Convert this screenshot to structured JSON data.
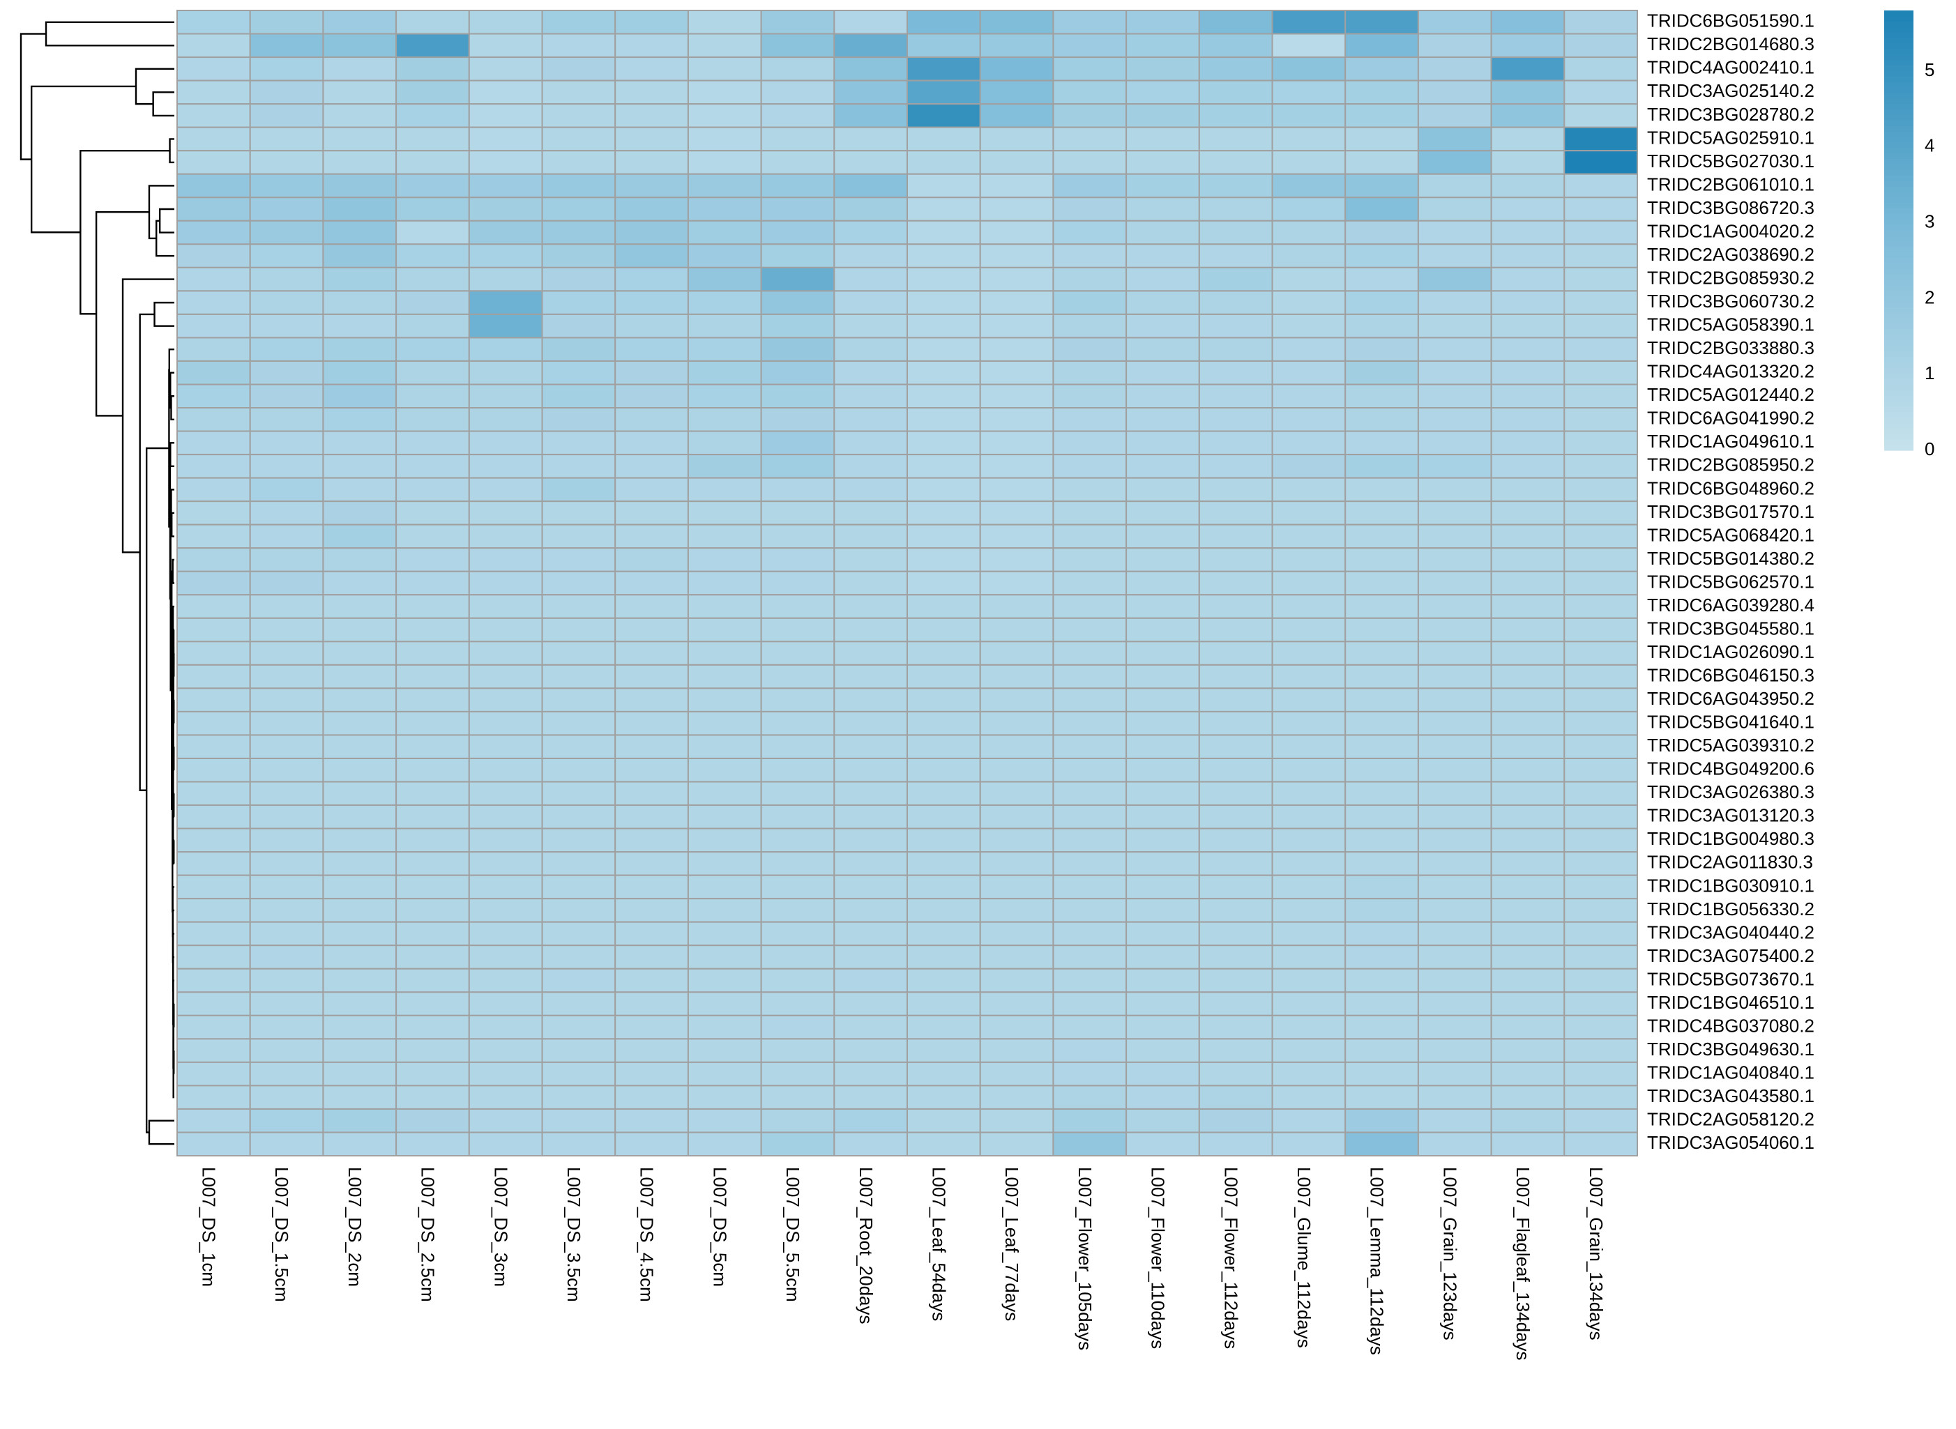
{
  "chart_data": {
    "type": "heatmap",
    "title": "",
    "color_scale": {
      "low": "#c6e1ec",
      "mid": "#7bbad8",
      "high": "#1d82b5",
      "min": 0,
      "max": 5.8
    },
    "legend": {
      "ticks": [
        0,
        1,
        2,
        3,
        4,
        5
      ],
      "tick_labels": [
        "0",
        "1",
        "2",
        "3",
        "4",
        "5"
      ]
    },
    "columns": [
      "L007_DS_1cm",
      "L007_DS_1.5cm",
      "L007_DS_2cm",
      "L007_DS_2.5cm",
      "L007_DS_3cm",
      "L007_DS_3.5cm",
      "L007_DS_4.5cm",
      "L007_DS_5cm",
      "L007_DS_5.5cm",
      "L007_Root_20days",
      "L007_Leaf_54days",
      "L007_Leaf_77days",
      "L007_Flower_105days",
      "L007_Flower_110days",
      "L007_Flower_112days",
      "L007_Glume_112days",
      "L007_Lemma_112days",
      "L007_Grain_123days",
      "L007_Flagleaf_134days",
      "L007_Grain_134days"
    ],
    "rows": [
      "TRIDC6BG051590.1",
      "TRIDC2BG014680.3",
      "TRIDC4AG002410.1",
      "TRIDC3AG025140.2",
      "TRIDC3BG028780.2",
      "TRIDC5AG025910.1",
      "TRIDC5BG027030.1",
      "TRIDC2BG061010.1",
      "TRIDC3BG086720.3",
      "TRIDC1AG004020.2",
      "TRIDC2AG038690.2",
      "TRIDC2BG085930.2",
      "TRIDC3BG060730.2",
      "TRIDC5AG058390.1",
      "TRIDC2BG033880.3",
      "TRIDC4AG013320.2",
      "TRIDC5AG012440.2",
      "TRIDC6AG041990.2",
      "TRIDC1AG049610.1",
      "TRIDC2BG085950.2",
      "TRIDC6BG048960.2",
      "TRIDC3BG017570.1",
      "TRIDC5AG068420.1",
      "TRIDC5BG014380.2",
      "TRIDC5BG062570.1",
      "TRIDC6AG039280.4",
      "TRIDC3BG045580.1",
      "TRIDC1AG026090.1",
      "TRIDC6BG046150.3",
      "TRIDC6AG043950.2",
      "TRIDC5BG041640.1",
      "TRIDC5AG039310.2",
      "TRIDC4BG049200.6",
      "TRIDC3AG026380.3",
      "TRIDC3AG013120.3",
      "TRIDC1BG004980.3",
      "TRIDC2AG011830.3",
      "TRIDC1BG030910.1",
      "TRIDC1BG056330.2",
      "TRIDC3AG040440.2",
      "TRIDC3AG075400.2",
      "TRIDC5BG073670.1",
      "TRIDC1BG046510.1",
      "TRIDC4BG037080.2",
      "TRIDC3BG049630.1",
      "TRIDC1AG040840.1",
      "TRIDC3AG043580.1",
      "TRIDC2AG058120.2",
      "TRIDC3AG054060.1"
    ],
    "values": [
      [
        1.2,
        1.4,
        1.6,
        1.0,
        1.0,
        1.5,
        1.5,
        0.8,
        1.7,
        0.9,
        2.9,
        2.7,
        1.6,
        1.6,
        2.8,
        4.4,
        4.3,
        1.6,
        2.5,
        1.1
      ],
      [
        0.8,
        2.4,
        2.3,
        4.4,
        0.8,
        0.9,
        0.9,
        0.8,
        2.3,
        3.5,
        1.8,
        1.8,
        1.6,
        1.5,
        1.8,
        0.5,
        2.9,
        1.1,
        1.6,
        1.1
      ],
      [
        0.9,
        1.2,
        0.9,
        1.4,
        0.8,
        1.1,
        0.9,
        0.8,
        1.0,
        2.3,
        4.5,
        2.9,
        1.5,
        1.4,
        1.8,
        2.3,
        1.6,
        1.1,
        4.4,
        1.0
      ],
      [
        0.8,
        1.1,
        0.8,
        1.4,
        0.7,
        0.8,
        0.8,
        0.7,
        0.9,
        2.2,
        4.0,
        2.6,
        1.3,
        1.2,
        1.3,
        1.2,
        1.3,
        1.1,
        2.1,
        0.9
      ],
      [
        0.8,
        1.1,
        0.8,
        1.2,
        0.7,
        0.8,
        0.8,
        0.7,
        0.9,
        2.4,
        5.1,
        2.6,
        1.4,
        1.4,
        1.3,
        1.3,
        1.3,
        1.1,
        2.1,
        0.8
      ],
      [
        0.8,
        0.8,
        0.8,
        0.8,
        0.7,
        0.8,
        0.8,
        0.7,
        0.8,
        0.8,
        0.8,
        0.8,
        0.8,
        0.8,
        0.8,
        0.8,
        0.8,
        2.3,
        0.8,
        5.6
      ],
      [
        0.8,
        0.8,
        0.8,
        0.8,
        0.7,
        0.8,
        0.8,
        0.7,
        0.8,
        0.8,
        0.8,
        0.8,
        0.8,
        0.8,
        0.8,
        0.8,
        0.8,
        2.6,
        0.8,
        5.8
      ],
      [
        2.0,
        1.8,
        1.9,
        1.6,
        1.6,
        1.8,
        1.7,
        1.7,
        1.8,
        2.4,
        0.7,
        0.7,
        1.6,
        1.3,
        1.3,
        2.0,
        2.1,
        1.0,
        1.0,
        0.9
      ],
      [
        1.7,
        1.6,
        2.1,
        1.5,
        1.4,
        1.5,
        1.8,
        1.6,
        1.6,
        1.4,
        0.7,
        0.7,
        1.1,
        1.0,
        1.0,
        1.2,
        2.6,
        1.0,
        0.9,
        0.9
      ],
      [
        1.6,
        1.7,
        2.0,
        0.7,
        1.7,
        1.7,
        1.9,
        1.5,
        1.6,
        1.2,
        0.7,
        0.7,
        1.2,
        1.0,
        1.0,
        1.0,
        1.1,
        0.9,
        0.9,
        0.9
      ],
      [
        1.1,
        1.2,
        1.9,
        1.2,
        1.2,
        1.4,
        2.0,
        1.6,
        1.3,
        0.9,
        0.7,
        0.7,
        0.9,
        0.9,
        0.9,
        1.0,
        1.2,
        0.9,
        0.9,
        0.8
      ],
      [
        0.9,
        1.0,
        1.3,
        1.0,
        1.0,
        1.1,
        1.2,
        2.0,
        3.5,
        0.9,
        0.7,
        0.7,
        1.0,
        0.9,
        1.3,
        0.8,
        0.9,
        2.0,
        0.9,
        0.8
      ],
      [
        0.9,
        1.0,
        1.0,
        1.1,
        3.3,
        1.2,
        1.2,
        1.2,
        2.0,
        0.9,
        0.7,
        0.7,
        1.3,
        1.0,
        1.0,
        0.8,
        1.2,
        0.9,
        0.9,
        0.8
      ],
      [
        0.9,
        0.9,
        0.9,
        1.0,
        3.3,
        1.1,
        1.0,
        1.0,
        1.3,
        0.8,
        0.7,
        0.7,
        1.0,
        0.9,
        0.9,
        0.8,
        1.0,
        0.8,
        0.8,
        0.8
      ],
      [
        1.0,
        1.2,
        1.3,
        1.2,
        1.2,
        1.4,
        1.2,
        1.2,
        1.9,
        1.0,
        0.7,
        0.7,
        1.1,
        1.0,
        1.0,
        0.9,
        1.1,
        0.9,
        0.9,
        0.9
      ],
      [
        1.4,
        1.1,
        1.5,
        1.0,
        1.0,
        1.2,
        1.1,
        1.3,
        1.6,
        0.9,
        0.7,
        0.7,
        1.0,
        0.9,
        0.9,
        0.9,
        1.4,
        0.9,
        0.9,
        0.8
      ],
      [
        1.2,
        1.1,
        1.6,
        1.0,
        1.0,
        1.3,
        1.1,
        1.2,
        1.3,
        0.9,
        0.7,
        0.7,
        1.0,
        0.9,
        0.9,
        0.9,
        1.0,
        0.9,
        0.9,
        0.8
      ],
      [
        1.0,
        1.0,
        1.2,
        1.0,
        1.0,
        1.1,
        1.0,
        1.0,
        1.1,
        0.9,
        0.7,
        0.7,
        0.9,
        0.9,
        0.9,
        0.9,
        1.0,
        0.9,
        0.9,
        0.8
      ],
      [
        0.9,
        0.9,
        0.9,
        0.9,
        0.9,
        0.9,
        0.9,
        1.0,
        1.6,
        0.9,
        0.7,
        0.7,
        0.9,
        0.9,
        0.9,
        0.9,
        0.9,
        0.9,
        0.9,
        0.8
      ],
      [
        0.9,
        0.9,
        0.9,
        0.9,
        0.9,
        0.9,
        0.9,
        1.4,
        1.5,
        0.9,
        0.7,
        0.7,
        0.9,
        0.9,
        0.9,
        1.1,
        1.3,
        1.2,
        0.9,
        0.8
      ],
      [
        0.9,
        1.2,
        0.9,
        0.9,
        0.9,
        1.3,
        0.9,
        0.9,
        0.9,
        0.9,
        0.7,
        0.7,
        0.8,
        0.8,
        0.8,
        0.8,
        0.8,
        0.8,
        0.8,
        0.8
      ],
      [
        0.8,
        0.9,
        1.1,
        0.8,
        0.8,
        0.8,
        0.8,
        0.8,
        0.8,
        0.8,
        0.7,
        0.7,
        0.8,
        0.8,
        0.8,
        0.8,
        0.8,
        0.8,
        0.8,
        0.8
      ],
      [
        0.8,
        0.9,
        1.3,
        0.8,
        0.8,
        0.8,
        0.8,
        0.8,
        0.8,
        0.8,
        0.7,
        0.7,
        0.8,
        0.8,
        0.8,
        0.8,
        0.8,
        0.8,
        0.8,
        0.8
      ],
      [
        1.0,
        1.0,
        1.0,
        0.9,
        0.9,
        0.9,
        1.0,
        0.9,
        0.9,
        0.8,
        0.7,
        0.7,
        0.8,
        0.8,
        0.8,
        0.8,
        0.8,
        0.8,
        0.8,
        0.8
      ],
      [
        1.1,
        1.1,
        0.9,
        0.9,
        0.9,
        0.9,
        0.9,
        0.9,
        0.9,
        0.8,
        0.7,
        0.7,
        0.8,
        0.8,
        0.8,
        0.8,
        0.8,
        0.8,
        0.8,
        0.8
      ],
      [
        0.8,
        0.8,
        0.8,
        0.8,
        0.8,
        0.8,
        0.8,
        0.8,
        0.8,
        0.8,
        0.8,
        0.8,
        0.8,
        0.8,
        0.8,
        0.8,
        0.8,
        0.8,
        0.8,
        0.8
      ],
      [
        0.8,
        0.8,
        0.8,
        0.8,
        0.8,
        0.8,
        0.8,
        0.8,
        0.8,
        0.8,
        0.8,
        0.8,
        0.8,
        0.8,
        0.8,
        0.8,
        0.8,
        0.8,
        0.8,
        0.8
      ],
      [
        0.8,
        0.8,
        0.8,
        0.8,
        0.8,
        0.8,
        0.8,
        0.8,
        0.8,
        0.8,
        0.8,
        0.8,
        0.8,
        0.8,
        0.8,
        0.8,
        0.8,
        0.8,
        0.8,
        0.8
      ],
      [
        0.8,
        0.8,
        0.8,
        0.8,
        0.8,
        0.8,
        0.8,
        0.8,
        0.8,
        0.8,
        0.8,
        0.8,
        0.8,
        0.8,
        0.8,
        0.8,
        0.8,
        0.8,
        0.8,
        0.8
      ],
      [
        0.8,
        0.8,
        0.8,
        0.8,
        0.8,
        0.8,
        0.8,
        0.8,
        0.8,
        0.8,
        0.8,
        0.8,
        0.8,
        0.8,
        0.8,
        0.8,
        0.8,
        0.8,
        0.8,
        0.8
      ],
      [
        0.8,
        0.8,
        0.8,
        0.8,
        0.8,
        0.8,
        0.8,
        0.8,
        0.8,
        0.8,
        0.8,
        0.8,
        0.8,
        0.8,
        0.8,
        0.8,
        0.8,
        0.8,
        0.8,
        0.8
      ],
      [
        0.8,
        0.8,
        0.8,
        0.8,
        0.8,
        0.8,
        0.8,
        0.8,
        0.8,
        0.8,
        0.8,
        0.8,
        0.8,
        0.8,
        0.8,
        0.8,
        0.8,
        0.8,
        0.8,
        0.8
      ],
      [
        0.8,
        0.8,
        0.8,
        0.8,
        0.8,
        0.8,
        0.8,
        0.8,
        0.8,
        0.8,
        0.8,
        0.8,
        0.8,
        0.8,
        0.8,
        0.8,
        0.8,
        0.8,
        0.8,
        0.8
      ],
      [
        0.8,
        0.8,
        0.8,
        0.8,
        0.8,
        0.8,
        0.8,
        0.8,
        0.8,
        0.8,
        0.8,
        0.8,
        0.8,
        0.8,
        0.8,
        0.8,
        0.8,
        0.8,
        0.8,
        0.8
      ],
      [
        0.8,
        0.8,
        0.8,
        0.8,
        0.8,
        0.8,
        0.8,
        0.8,
        0.8,
        0.8,
        0.8,
        0.8,
        0.8,
        0.8,
        0.8,
        0.8,
        0.8,
        0.8,
        0.8,
        0.8
      ],
      [
        0.8,
        0.8,
        0.8,
        0.8,
        0.8,
        0.8,
        0.8,
        0.8,
        0.8,
        0.8,
        0.8,
        0.8,
        0.8,
        0.8,
        0.8,
        0.8,
        0.8,
        0.8,
        0.8,
        0.8
      ],
      [
        0.8,
        0.8,
        0.8,
        0.8,
        0.8,
        0.8,
        0.8,
        0.8,
        0.8,
        0.8,
        0.8,
        0.8,
        0.8,
        0.8,
        0.8,
        0.8,
        0.8,
        0.8,
        0.8,
        0.8
      ],
      [
        0.8,
        0.8,
        0.8,
        0.8,
        0.8,
        0.8,
        0.8,
        0.8,
        0.8,
        0.8,
        0.8,
        0.8,
        0.8,
        0.8,
        0.8,
        0.8,
        1.0,
        0.8,
        0.8,
        0.8
      ],
      [
        0.8,
        0.8,
        0.8,
        0.8,
        0.8,
        0.8,
        0.8,
        0.8,
        0.8,
        0.8,
        0.8,
        0.8,
        0.8,
        0.8,
        0.8,
        0.8,
        1.0,
        0.8,
        0.8,
        0.8
      ],
      [
        0.8,
        0.8,
        0.8,
        0.8,
        0.8,
        0.8,
        0.8,
        0.8,
        0.8,
        0.8,
        0.8,
        0.8,
        0.8,
        0.8,
        0.8,
        0.8,
        0.9,
        0.8,
        0.8,
        0.8
      ],
      [
        0.8,
        0.9,
        0.8,
        0.8,
        0.8,
        0.8,
        0.8,
        0.8,
        0.8,
        0.8,
        0.8,
        0.8,
        0.8,
        0.8,
        0.8,
        0.8,
        0.9,
        0.8,
        0.8,
        0.8
      ],
      [
        0.8,
        0.8,
        0.8,
        0.8,
        0.8,
        0.9,
        0.8,
        0.8,
        0.8,
        0.9,
        0.8,
        0.8,
        0.8,
        0.8,
        0.8,
        0.8,
        0.8,
        0.8,
        0.8,
        0.8
      ],
      [
        0.8,
        0.8,
        0.8,
        0.8,
        0.8,
        0.8,
        0.8,
        0.8,
        0.8,
        0.8,
        0.8,
        0.8,
        0.8,
        0.8,
        0.8,
        0.8,
        0.8,
        0.8,
        0.8,
        0.8
      ],
      [
        0.8,
        0.8,
        0.8,
        0.8,
        0.8,
        0.8,
        0.8,
        0.8,
        0.9,
        0.8,
        0.8,
        0.8,
        0.8,
        0.8,
        0.8,
        0.8,
        0.8,
        0.8,
        0.8,
        0.8
      ],
      [
        0.8,
        0.8,
        0.8,
        0.8,
        0.8,
        0.8,
        0.8,
        0.8,
        0.8,
        0.8,
        0.8,
        0.8,
        0.9,
        0.8,
        0.8,
        0.8,
        0.8,
        0.8,
        0.8,
        0.8
      ],
      [
        0.8,
        0.8,
        0.8,
        0.8,
        0.8,
        0.8,
        0.8,
        0.8,
        0.8,
        0.8,
        0.8,
        0.8,
        0.9,
        0.9,
        0.8,
        0.8,
        0.8,
        0.8,
        0.8,
        0.8
      ],
      [
        0.8,
        0.8,
        0.8,
        0.8,
        0.8,
        0.8,
        0.8,
        0.8,
        0.8,
        0.8,
        0.8,
        0.8,
        1.0,
        0.9,
        1.0,
        0.8,
        0.8,
        0.8,
        0.8,
        0.8
      ],
      [
        0.9,
        1.2,
        1.3,
        1.1,
        0.9,
        0.9,
        0.9,
        0.9,
        1.0,
        1.2,
        0.8,
        0.8,
        1.3,
        1.0,
        1.1,
        0.9,
        1.6,
        0.9,
        1.0,
        0.9
      ],
      [
        0.9,
        0.9,
        0.9,
        0.9,
        0.9,
        0.9,
        0.9,
        0.9,
        1.3,
        0.9,
        0.8,
        0.8,
        2.0,
        0.9,
        0.9,
        0.9,
        2.5,
        0.9,
        0.9,
        0.9
      ]
    ],
    "row_dendrogram": {
      "merges": [
        [
          -6,
          -7,
          0.17
        ],
        [
          -28,
          -29,
          0.02
        ],
        [
          -27,
          2,
          0.025
        ],
        [
          -30,
          -31,
          0.02
        ],
        [
          3,
          4,
          0.03
        ],
        [
          -32,
          -33,
          0.02
        ],
        [
          5,
          6,
          0.035
        ],
        [
          -34,
          -35,
          0.02
        ],
        [
          7,
          8,
          0.04
        ],
        [
          -36,
          -37,
          0.02
        ],
        [
          9,
          10,
          0.045
        ],
        [
          -26,
          11,
          0.05
        ],
        [
          -43,
          -44,
          0.02
        ],
        [
          -45,
          -46,
          0.02
        ],
        [
          13,
          14,
          0.03
        ],
        [
          -47,
          15,
          0.035
        ],
        [
          -42,
          16,
          0.04
        ],
        [
          -41,
          17,
          0.045
        ],
        [
          -40,
          18,
          0.05
        ],
        [
          -39,
          19,
          0.055
        ],
        [
          -38,
          20,
          0.06
        ],
        [
          12,
          21,
          0.07
        ],
        [
          -24,
          -25,
          0.06
        ],
        [
          22,
          23,
          0.1
        ],
        [
          -22,
          -23,
          0.1
        ],
        [
          -21,
          25,
          0.12
        ],
        [
          24,
          26,
          0.14
        ],
        [
          -19,
          -20,
          0.15
        ],
        [
          27,
          28,
          0.16
        ],
        [
          -17,
          -18,
          0.12
        ],
        [
          -16,
          30,
          0.15
        ],
        [
          -15,
          31,
          0.19
        ],
        [
          29,
          32,
          0.2
        ],
        [
          -13,
          -14,
          0.75
        ],
        [
          -4,
          -5,
          0.8
        ],
        [
          -3,
          35,
          1.45
        ],
        [
          -9,
          -10,
          0.55
        ],
        [
          37,
          -11,
          0.68
        ],
        [
          -8,
          38,
          0.95
        ],
        [
          -48,
          -49,
          0.95
        ],
        [
          33,
          40,
          1.05
        ],
        [
          34,
          41,
          1.3
        ],
        [
          -12,
          42,
          1.95
        ],
        [
          39,
          43,
          2.95
        ],
        [
          1,
          44,
          3.55
        ],
        [
          -1,
          -2,
          4.85
        ],
        [
          36,
          45,
          5.4
        ],
        [
          46,
          47,
          5.8
        ]
      ]
    }
  }
}
